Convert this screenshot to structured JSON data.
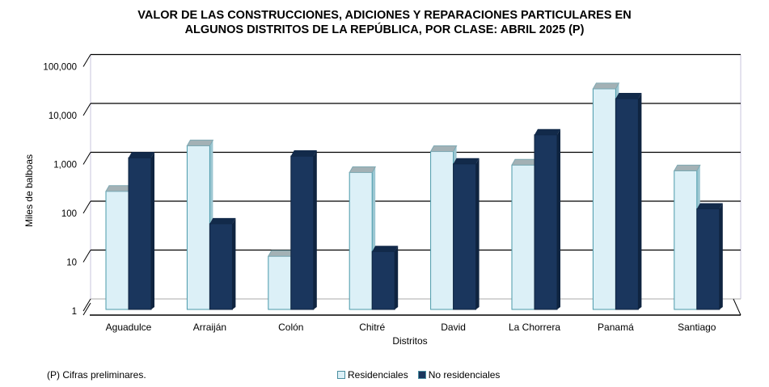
{
  "title_line1": "VALOR DE LAS CONSTRUCCIONES, ADICIONES Y REPARACIONES PARTICULARES EN",
  "title_line2": "ALGUNOS DISTRITOS DE LA REPÚBLICA, POR CLASE: ABRIL 2025 (P)",
  "footnote": "(P) Cifras  preliminares.",
  "colors": {
    "residenciales": "#dcf0f7",
    "no_residenciales": "#1a365d",
    "res_cap": "#a3b1b5",
    "nonres_cap": "#122a4a",
    "res_edge": "#4a9aaa"
  },
  "chart_data": {
    "type": "bar",
    "title": "VALOR DE LAS CONSTRUCCIONES, ADICIONES Y REPARACIONES PARTICULARES EN ALGUNOS DISTRITOS DE LA REPÚBLICA, POR CLASE: ABRIL 2025 (P)",
    "xlabel": "Distritos",
    "ylabel": "Miles de balboas",
    "yscale": "log",
    "ylim": [
      1,
      100000
    ],
    "yticks": [
      "1",
      "10",
      "100",
      "1,000",
      "10,000",
      "100,000"
    ],
    "categories": [
      "Aguadulce",
      "Arraiján",
      "Colón",
      "Chitré",
      "David",
      "La Chorrera",
      "Panamá",
      "Santiago"
    ],
    "series": [
      {
        "name": "Residenciales",
        "values": [
          250,
          2100,
          12,
          600,
          1600,
          850,
          30000,
          650
        ]
      },
      {
        "name": "No residenciales",
        "values": [
          1200,
          55,
          1300,
          15,
          900,
          3500,
          19000,
          110
        ]
      }
    ],
    "legend_position": "bottom",
    "grid": true
  }
}
